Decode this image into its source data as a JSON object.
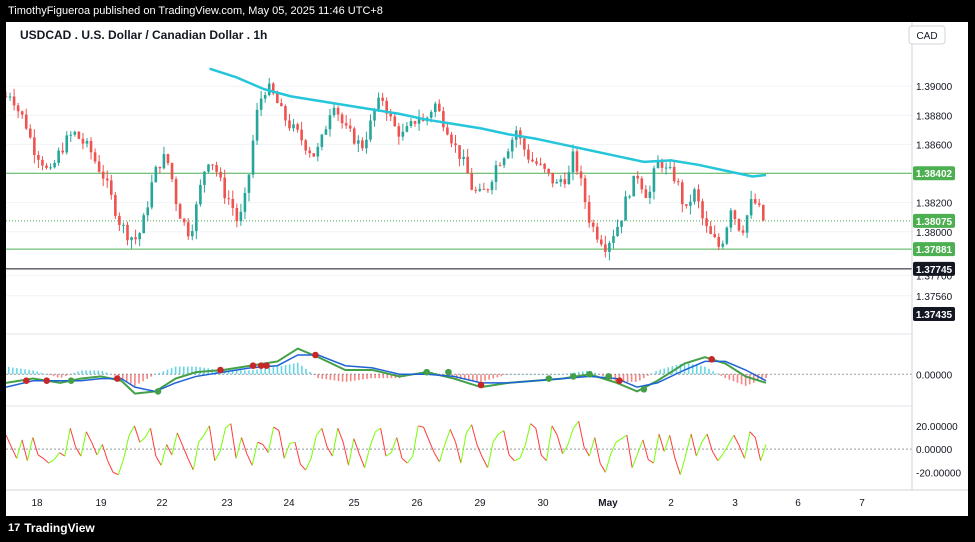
{
  "header": {
    "publisher_text": "TimothyFigueroa published on TradingView.com, May 05, 2025 11:46 UTC+8"
  },
  "footer": {
    "brand": "TradingView",
    "logo_glyph": "17"
  },
  "chart_title": "USDCAD . U.S. Dollar / Canadian Dollar . 1h",
  "currency_button": "CAD",
  "colors": {
    "up_candle": "#26a69a",
    "down_candle": "#ef5350",
    "moving_average": "#26c6da",
    "macd_line": "#43a047",
    "signal_line": "#1e63d6",
    "macd_red": "#c62828",
    "osc_up": "#76ff03",
    "osc_down": "#ff3b3b",
    "level_line": "#4caf50"
  },
  "chart_data": [
    {
      "type": "candlestick",
      "pane": "price",
      "yaxis_ticks": [
        "1.39000",
        "1.38800",
        "1.38600",
        "1.38200",
        "1.38000",
        "1.37700",
        "1.37560"
      ],
      "ylim": [
        1.3738,
        1.3918
      ],
      "x_ticks": [
        "18",
        "19",
        "22",
        "23",
        "24",
        "25",
        "26",
        "29",
        "30",
        "May",
        "2",
        "3",
        "6",
        "7"
      ],
      "price_labels": [
        {
          "text": "1.38402",
          "value": 1.38402,
          "style": "green"
        },
        {
          "text": "1.38075",
          "value": 1.38075,
          "style": "green"
        },
        {
          "text": "1.37881",
          "value": 1.37881,
          "style": "green"
        },
        {
          "text": "1.37745",
          "value": 1.37745,
          "style": "black"
        },
        {
          "text": "1.37435",
          "value": 1.37435,
          "style": "black"
        }
      ],
      "horizontal_levels": [
        {
          "value": 1.38402,
          "color": "green"
        },
        {
          "value": 1.37881,
          "color": "green"
        },
        {
          "value": 1.37745,
          "color": "black"
        }
      ],
      "last_price": 1.38075,
      "close_path": [
        [
          0,
          1.3893
        ],
        [
          4,
          1.3896
        ],
        [
          8,
          1.3885
        ],
        [
          14,
          1.3876
        ],
        [
          20,
          1.3858
        ],
        [
          26,
          1.385
        ],
        [
          32,
          1.3838
        ],
        [
          38,
          1.3852
        ],
        [
          44,
          1.3862
        ],
        [
          50,
          1.3868
        ],
        [
          56,
          1.3862
        ],
        [
          62,
          1.3856
        ],
        [
          66,
          1.3848
        ],
        [
          72,
          1.3838
        ],
        [
          78,
          1.3822
        ],
        [
          84,
          1.3806
        ],
        [
          90,
          1.3798
        ],
        [
          96,
          1.3795
        ],
        [
          100,
          1.3802
        ],
        [
          104,
          1.3818
        ],
        [
          108,
          1.3835
        ],
        [
          112,
          1.3846
        ],
        [
          118,
          1.3852
        ],
        [
          122,
          1.3838
        ],
        [
          126,
          1.3818
        ],
        [
          130,
          1.3808
        ],
        [
          134,
          1.38
        ],
        [
          138,
          1.3806
        ],
        [
          142,
          1.3825
        ],
        [
          146,
          1.3842
        ],
        [
          150,
          1.3852
        ],
        [
          156,
          1.384
        ],
        [
          160,
          1.3828
        ],
        [
          166,
          1.382
        ],
        [
          170,
          1.3808
        ],
        [
          174,
          1.3812
        ],
        [
          178,
          1.3832
        ],
        [
          182,
          1.3862
        ],
        [
          186,
          1.3888
        ],
        [
          192,
          1.39
        ],
        [
          198,
          1.3892
        ],
        [
          204,
          1.388
        ],
        [
          210,
          1.3872
        ],
        [
          216,
          1.3866
        ],
        [
          222,
          1.3858
        ],
        [
          228,
          1.3852
        ],
        [
          234,
          1.3866
        ],
        [
          238,
          1.3882
        ],
        [
          242,
          1.389
        ],
        [
          246,
          1.3878
        ],
        [
          250,
          1.387
        ],
        [
          256,
          1.3865
        ],
        [
          262,
          1.3858
        ],
        [
          268,
          1.3872
        ],
        [
          272,
          1.3885
        ],
        [
          278,
          1.3892
        ],
        [
          282,
          1.388
        ],
        [
          286,
          1.3872
        ],
        [
          292,
          1.3866
        ],
        [
          298,
          1.3872
        ],
        [
          304,
          1.388
        ],
        [
          308,
          1.3874
        ],
        [
          312,
          1.3882
        ],
        [
          316,
          1.3888
        ],
        [
          320,
          1.388
        ],
        [
          326,
          1.387
        ],
        [
          330,
          1.386
        ],
        [
          336,
          1.385
        ],
        [
          340,
          1.384
        ],
        [
          344,
          1.3828
        ],
        [
          350,
          1.3825
        ],
        [
          356,
          1.3832
        ],
        [
          360,
          1.3844
        ],
        [
          366,
          1.3852
        ],
        [
          372,
          1.3862
        ],
        [
          376,
          1.387
        ],
        [
          380,
          1.386
        ],
        [
          386,
          1.385
        ],
        [
          392,
          1.3846
        ],
        [
          398,
          1.384
        ],
        [
          402,
          1.3836
        ],
        [
          406,
          1.3832
        ],
        [
          410,
          1.3838
        ],
        [
          414,
          1.3836
        ],
        [
          418,
          1.3852
        ],
        [
          422,
          1.384
        ],
        [
          426,
          1.3824
        ],
        [
          430,
          1.3808
        ],
        [
          434,
          1.38
        ],
        [
          438,
          1.3796
        ],
        [
          442,
          1.379
        ],
        [
          446,
          1.3797
        ],
        [
          450,
          1.3803
        ],
        [
          454,
          1.3812
        ],
        [
          458,
          1.3826
        ],
        [
          462,
          1.3833
        ],
        [
          466,
          1.384
        ],
        [
          470,
          1.3828
        ],
        [
          474,
          1.3825
        ],
        [
          478,
          1.3842
        ],
        [
          482,
          1.385
        ],
        [
          486,
          1.3842
        ],
        [
          490,
          1.384
        ],
        [
          494,
          1.3836
        ],
        [
          498,
          1.3822
        ],
        [
          502,
          1.3812
        ],
        [
          506,
          1.383
        ],
        [
          510,
          1.382
        ],
        [
          514,
          1.3806
        ],
        [
          518,
          1.3798
        ],
        [
          522,
          1.3794
        ],
        [
          526,
          1.3789
        ],
        [
          530,
          1.38
        ],
        [
          534,
          1.3818
        ],
        [
          538,
          1.3808
        ],
        [
          542,
          1.38
        ],
        [
          546,
          1.3811
        ],
        [
          550,
          1.3822
        ],
        [
          554,
          1.3817
        ],
        [
          558,
          1.3808
        ]
      ],
      "moving_average_path": [
        [
          150,
          1.3912
        ],
        [
          170,
          1.3906
        ],
        [
          190,
          1.3898
        ],
        [
          210,
          1.3893
        ],
        [
          230,
          1.389
        ],
        [
          250,
          1.3887
        ],
        [
          270,
          1.3884
        ],
        [
          290,
          1.3881
        ],
        [
          310,
          1.3877
        ],
        [
          330,
          1.3874
        ],
        [
          350,
          1.3871
        ],
        [
          370,
          1.3867
        ],
        [
          390,
          1.3864
        ],
        [
          410,
          1.386
        ],
        [
          430,
          1.3856
        ],
        [
          450,
          1.3852
        ],
        [
          470,
          1.3848
        ],
        [
          490,
          1.3849
        ],
        [
          510,
          1.3846
        ],
        [
          530,
          1.3842
        ],
        [
          550,
          1.3838
        ],
        [
          560,
          1.3839
        ]
      ]
    },
    {
      "type": "macd",
      "pane": "macd",
      "yaxis_ticks": [
        "0.00000"
      ],
      "ylim": [
        -0.0012,
        0.0016
      ],
      "macd_path": [
        [
          0,
          -0.0004
        ],
        [
          20,
          -0.0002
        ],
        [
          40,
          -0.0004
        ],
        [
          55,
          -0.0002
        ],
        [
          70,
          -0.0001
        ],
        [
          85,
          -0.0003
        ],
        [
          95,
          -0.0009
        ],
        [
          110,
          -0.0008
        ],
        [
          125,
          -0.0002
        ],
        [
          140,
          0.0001
        ],
        [
          160,
          0.0002
        ],
        [
          180,
          0.0004
        ],
        [
          200,
          0.0006
        ],
        [
          215,
          0.0012
        ],
        [
          230,
          0.0008
        ],
        [
          250,
          0.0002
        ],
        [
          270,
          0.0002
        ],
        [
          290,
          -0.0001
        ],
        [
          310,
          0.0001
        ],
        [
          330,
          -0.0002
        ],
        [
          350,
          -0.0006
        ],
        [
          370,
          -0.0004
        ],
        [
          390,
          -0.0003
        ],
        [
          410,
          -0.0002
        ],
        [
          430,
          0.0
        ],
        [
          450,
          -0.0004
        ],
        [
          465,
          -0.0008
        ],
        [
          480,
          -0.0003
        ],
        [
          500,
          0.0005
        ],
        [
          515,
          0.0008
        ],
        [
          530,
          0.0005
        ],
        [
          545,
          -0.0001
        ],
        [
          560,
          -0.0004
        ]
      ],
      "signal_path": [
        [
          0,
          -0.0006
        ],
        [
          20,
          -0.0003
        ],
        [
          40,
          -0.0003
        ],
        [
          55,
          -0.0003
        ],
        [
          70,
          -0.0002
        ],
        [
          85,
          -0.0002
        ],
        [
          95,
          -0.0006
        ],
        [
          110,
          -0.0008
        ],
        [
          125,
          -0.0004
        ],
        [
          140,
          -0.0001
        ],
        [
          160,
          0.0001
        ],
        [
          180,
          0.0003
        ],
        [
          200,
          0.0004
        ],
        [
          215,
          0.0009
        ],
        [
          230,
          0.0009
        ],
        [
          250,
          0.0004
        ],
        [
          270,
          0.0003
        ],
        [
          290,
          0.0
        ],
        [
          310,
          0.0
        ],
        [
          330,
          -0.0001
        ],
        [
          350,
          -0.0004
        ],
        [
          370,
          -0.0004
        ],
        [
          390,
          -0.0003
        ],
        [
          410,
          -0.0002
        ],
        [
          430,
          -0.0001
        ],
        [
          450,
          -0.0002
        ],
        [
          465,
          -0.0006
        ],
        [
          480,
          -0.0004
        ],
        [
          500,
          0.0002
        ],
        [
          515,
          0.0006
        ],
        [
          530,
          0.0006
        ],
        [
          545,
          0.0002
        ],
        [
          560,
          -0.0003
        ]
      ],
      "cross_points": [
        [
          15,
          -0.0003,
          "red"
        ],
        [
          30,
          -0.0003,
          "red"
        ],
        [
          48,
          -0.0003,
          "green"
        ],
        [
          82,
          -0.0002,
          "red"
        ],
        [
          112,
          -0.0008,
          "green"
        ],
        [
          158,
          0.0002,
          "red"
        ],
        [
          182,
          0.0004,
          "red"
        ],
        [
          188,
          0.0004,
          "red"
        ],
        [
          192,
          0.0004,
          "red"
        ],
        [
          228,
          0.0009,
          "red"
        ],
        [
          310,
          0.0001,
          "green"
        ],
        [
          326,
          0.0001,
          "green"
        ],
        [
          350,
          -0.0005,
          "red"
        ],
        [
          400,
          -0.0002,
          "green"
        ],
        [
          418,
          -0.0001,
          "green"
        ],
        [
          430,
          0.0,
          "green"
        ],
        [
          444,
          -0.0001,
          "green"
        ],
        [
          452,
          -0.0003,
          "red"
        ],
        [
          470,
          -0.0007,
          "green"
        ],
        [
          520,
          0.0007,
          "red"
        ]
      ]
    },
    {
      "type": "line",
      "pane": "oscillator",
      "yaxis_ticks": [
        "20.00000",
        "0.00000",
        "-20.00000"
      ],
      "ylim": [
        -30,
        32
      ],
      "values": [
        12,
        2,
        -8,
        8,
        -10,
        10,
        -5,
        -8,
        -12,
        -9,
        -3,
        -6,
        18,
        2,
        -6,
        15,
        6,
        -5,
        4,
        -10,
        -20,
        -22,
        -8,
        12,
        20,
        6,
        10,
        18,
        -6,
        -14,
        4,
        -5,
        14,
        3,
        -8,
        -18,
        6,
        12,
        20,
        -10,
        -2,
        18,
        22,
        -8,
        10,
        -4,
        -14,
        6,
        4,
        -3,
        19,
        16,
        -8,
        5,
        6,
        -13,
        -18,
        -8,
        12,
        18,
        2,
        -6,
        18,
        6,
        -14,
        9,
        -4,
        -16,
        2,
        15,
        18,
        -6,
        -3,
        10,
        -8,
        -12,
        -6,
        20,
        19,
        8,
        -3,
        -11,
        4,
        17,
        6,
        -12,
        14,
        21,
        4,
        -7,
        -16,
        6,
        13,
        16,
        -5,
        -10,
        -8,
        3,
        22,
        18,
        -5,
        -10,
        20,
        12,
        -4,
        4,
        18,
        24,
        2,
        -6,
        10,
        -12,
        -20,
        -4,
        6,
        9,
        12,
        -16,
        -4,
        8,
        -9,
        -12,
        13,
        -2,
        12,
        -8,
        -22,
        -5,
        13,
        -6,
        6,
        13,
        -2,
        -10,
        -4,
        4,
        12,
        3,
        -8,
        15,
        10,
        -10,
        4
      ]
    }
  ]
}
